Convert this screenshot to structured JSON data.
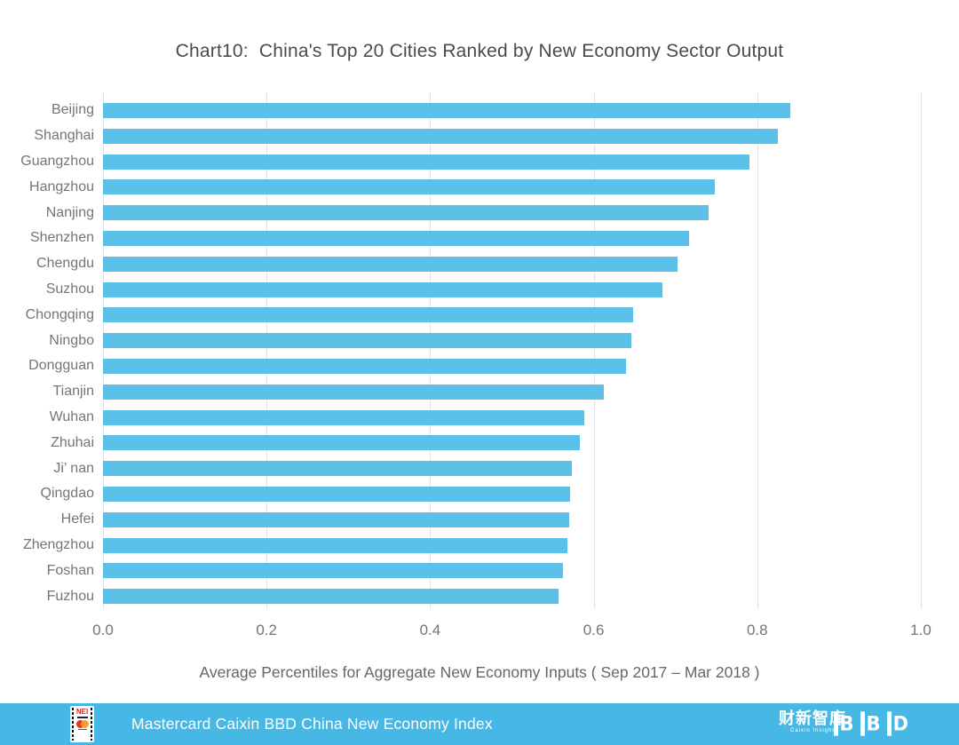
{
  "title": "Chart10:  China's Top 20 Cities Ranked by New Economy Sector Output",
  "chart_data": {
    "type": "bar",
    "orientation": "horizontal",
    "title": "Chart10:  China's Top 20 Cities Ranked by New Economy Sector Output",
    "categories": [
      "Beijing",
      "Shanghai",
      "Guangzhou",
      "Hangzhou",
      "Nanjing",
      "Shenzhen",
      "Chengdu",
      "Suzhou",
      "Chongqing",
      "Ningbo",
      "Dongguan",
      "Tianjin",
      "Wuhan",
      "Zhuhai",
      "Ji’ nan",
      "Qingdao",
      "Hefei",
      "Zhengzhou",
      "Foshan",
      "Fuzhou"
    ],
    "values": [
      0.84,
      0.825,
      0.79,
      0.748,
      0.74,
      0.717,
      0.703,
      0.684,
      0.648,
      0.646,
      0.639,
      0.612,
      0.589,
      0.583,
      0.573,
      0.571,
      0.57,
      0.568,
      0.562,
      0.557
    ],
    "xlabel": "Average Percentiles for Aggregate New Economy Inputs ( Sep 2017 – Mar 2018 )",
    "ylabel": "",
    "xlim": [
      0,
      1
    ],
    "xticks": [
      "0.0",
      "0.2",
      "0.4",
      "0.6",
      "0.8",
      "1.0"
    ],
    "grid": "vertical",
    "legend": "none",
    "bar_color": "#5bc1e8",
    "gridline_color": "#e3e3e3"
  },
  "footer": {
    "text": "Mastercard Caixin BBD China New Economy Index",
    "background_color": "#47b8e6",
    "nei_logo": {
      "label": "NEI"
    },
    "caixin_logo": {
      "text": "财新智库",
      "subtext": "Caixin Insight"
    },
    "bbd_logo": {
      "text": "BBD"
    }
  }
}
